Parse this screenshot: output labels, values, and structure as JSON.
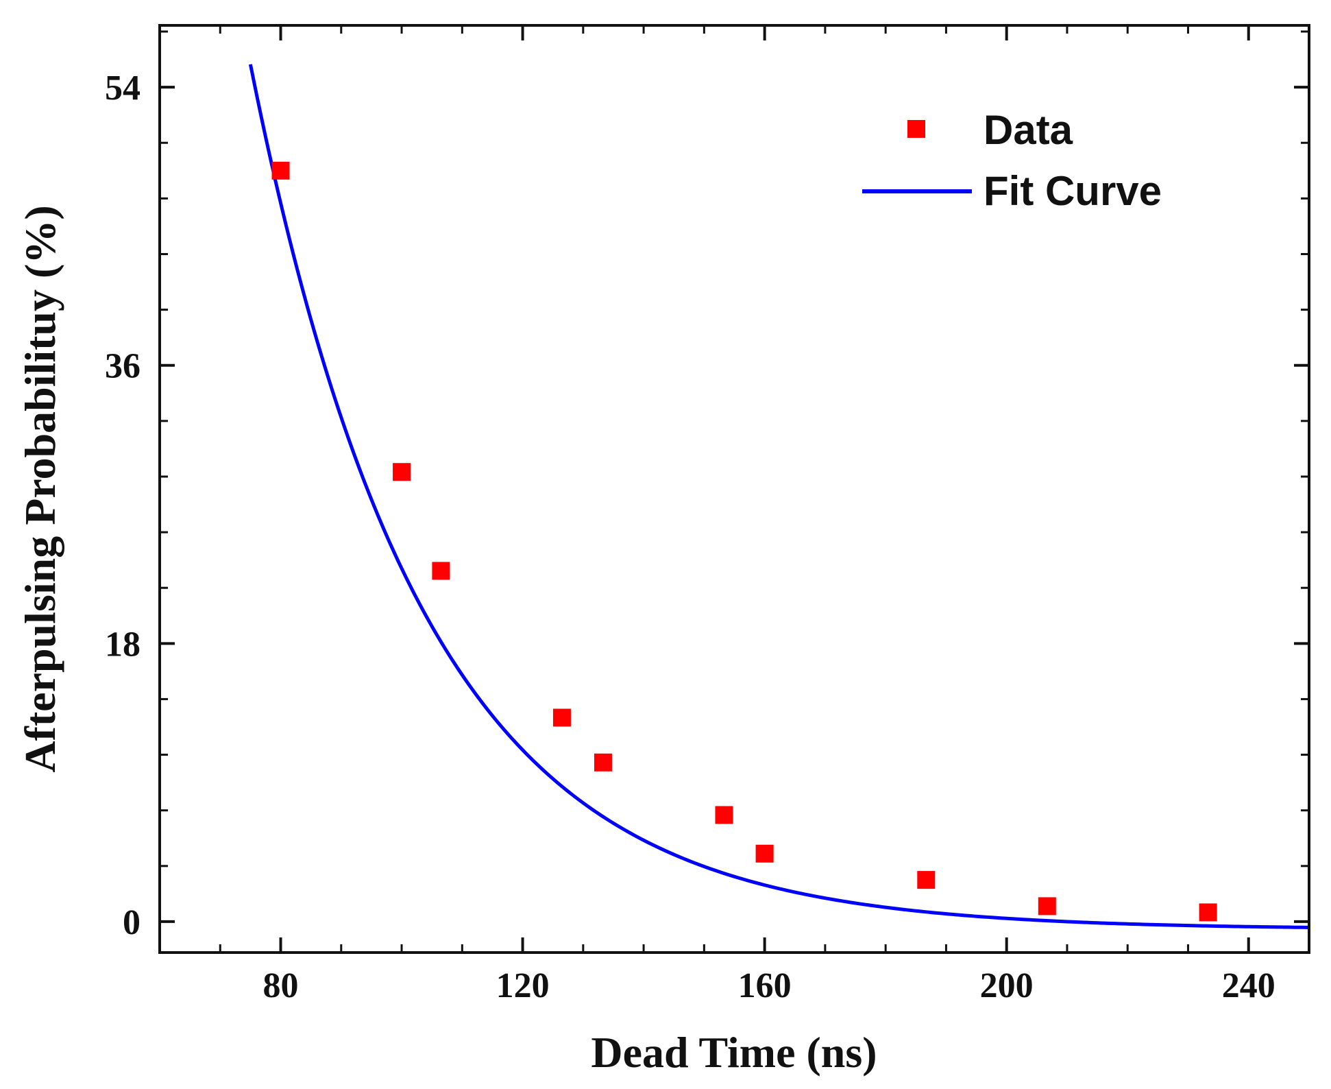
{
  "chart_data": {
    "type": "scatter",
    "title": "",
    "xlabel": "Dead Time (ns)",
    "ylabel": "Afterpulsing Probabilituy (%)",
    "xlim": [
      60,
      250
    ],
    "ylim": [
      -2,
      58
    ],
    "xticks": [
      80,
      120,
      160,
      200,
      240
    ],
    "xtick_labels": [
      "80",
      "120",
      "160",
      "200",
      "240"
    ],
    "xminor_step": 10,
    "yticks": [
      0,
      18,
      36,
      54
    ],
    "ytick_labels": [
      "0",
      "18",
      "36",
      "54"
    ],
    "yminor_step": 3.6,
    "grid": false,
    "legend_position": "top-right",
    "series": [
      {
        "name": "Data",
        "kind": "markers",
        "marker": "square",
        "color": "#ff0000",
        "x": [
          80,
          100,
          106.5,
          126.5,
          133.3,
          153.3,
          160,
          186.7,
          206.7,
          233.3
        ],
        "y": [
          48.6,
          29.1,
          22.7,
          13.2,
          10.3,
          6.9,
          4.4,
          2.7,
          1.0,
          0.6
        ]
      },
      {
        "name": "Fit Curve",
        "kind": "line",
        "color": "#0000ff",
        "x_range": [
          75,
          250
        ],
        "fit": {
          "model": "exponential",
          "a": 47.0,
          "x0": 80,
          "tau": 28.6,
          "offset": -0.5
        }
      }
    ]
  }
}
